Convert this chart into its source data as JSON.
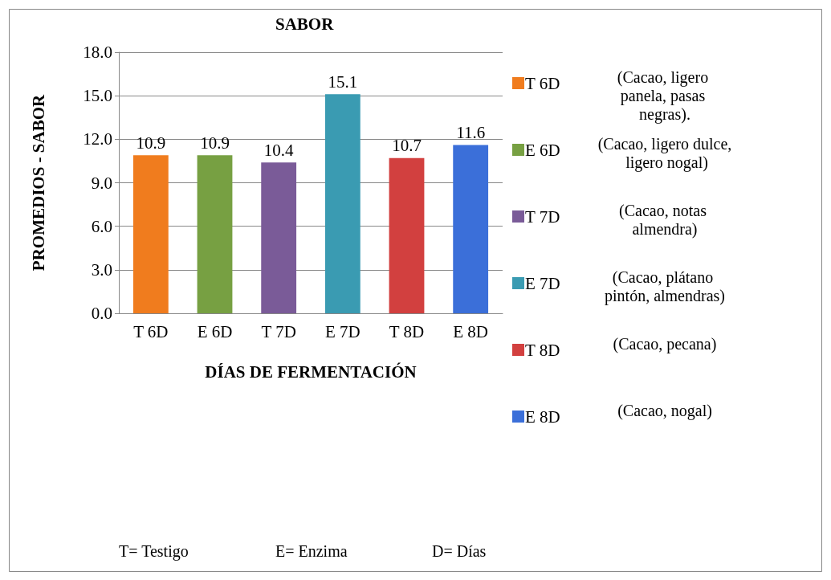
{
  "chart_data": {
    "type": "bar",
    "title": "SABOR",
    "xlabel": "DÍAS DE FERMENTACIÓN",
    "ylabel": "PROMEDIOS - SABOR",
    "categories": [
      "T 6D",
      "E 6D",
      "T 7D",
      "E 7D",
      "T 8D",
      "E 8D"
    ],
    "series": [
      {
        "name": "T 6D",
        "color": "#f07c1e",
        "values": [
          10.9,
          null,
          null,
          null,
          null,
          null
        ]
      },
      {
        "name": "E 6D",
        "color": "#77a042",
        "values": [
          null,
          10.9,
          null,
          null,
          null,
          null
        ]
      },
      {
        "name": "T 7D",
        "color": "#7a5b98",
        "values": [
          null,
          null,
          10.4,
          null,
          null,
          null
        ]
      },
      {
        "name": "E 7D",
        "color": "#3a9bb2",
        "values": [
          null,
          null,
          null,
          15.1,
          null,
          null
        ]
      },
      {
        "name": "T 8D",
        "color": "#d2403f",
        "values": [
          null,
          null,
          null,
          null,
          10.7,
          null
        ]
      },
      {
        "name": "E 8D",
        "color": "#3b6fd9",
        "values": [
          null,
          null,
          null,
          null,
          null,
          11.6
        ]
      }
    ],
    "stacked": true,
    "ylim": [
      0,
      18
    ],
    "yticks": [
      {
        "value": 0,
        "label": "0.0"
      },
      {
        "value": 3,
        "label": "3.0"
      },
      {
        "value": 6,
        "label": "6.0"
      },
      {
        "value": 9,
        "label": "9.0"
      },
      {
        "value": 12,
        "label": "12.0"
      },
      {
        "value": 15,
        "label": "15.0"
      },
      {
        "value": 18,
        "label": "18.0"
      }
    ],
    "grid": "y",
    "data_labels": true,
    "legend": "right",
    "annotations": [
      "(Cacao, ligero panela, pasas negras).",
      "(Cacao, ligero dulce, ligero nogal)",
      "(Cacao, notas almendra)",
      "(Cacao, plátano pintón, almendras)",
      "(Cacao, pecana)",
      "(Cacao, nogal)",
      "T= Testigo",
      "E= Enzima",
      "D= Días"
    ]
  }
}
